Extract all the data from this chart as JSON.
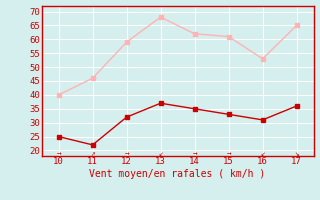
{
  "x": [
    10,
    11,
    12,
    13,
    14,
    15,
    16,
    17
  ],
  "y_rafales": [
    40,
    46,
    59,
    68,
    62,
    61,
    53,
    65
  ],
  "y_moyen": [
    25,
    22,
    32,
    37,
    35,
    33,
    31,
    36
  ],
  "color_rafales": "#ffb3b3",
  "color_moyen": "#cc0000",
  "xlabel": "Vent moyen/en rafales ( km/h )",
  "ylabel_ticks": [
    20,
    25,
    30,
    35,
    40,
    45,
    50,
    55,
    60,
    65,
    70
  ],
  "xlim": [
    9.5,
    17.5
  ],
  "ylim": [
    18,
    72
  ],
  "background_color": "#d5eeee",
  "grid_color": "#b8dede",
  "tick_color": "#cc0000",
  "label_color": "#cc0000",
  "spine_color": "#cc0000",
  "arrows": [
    "→",
    "↗",
    "→",
    "↙",
    "→",
    "→",
    "↙",
    "↘"
  ]
}
